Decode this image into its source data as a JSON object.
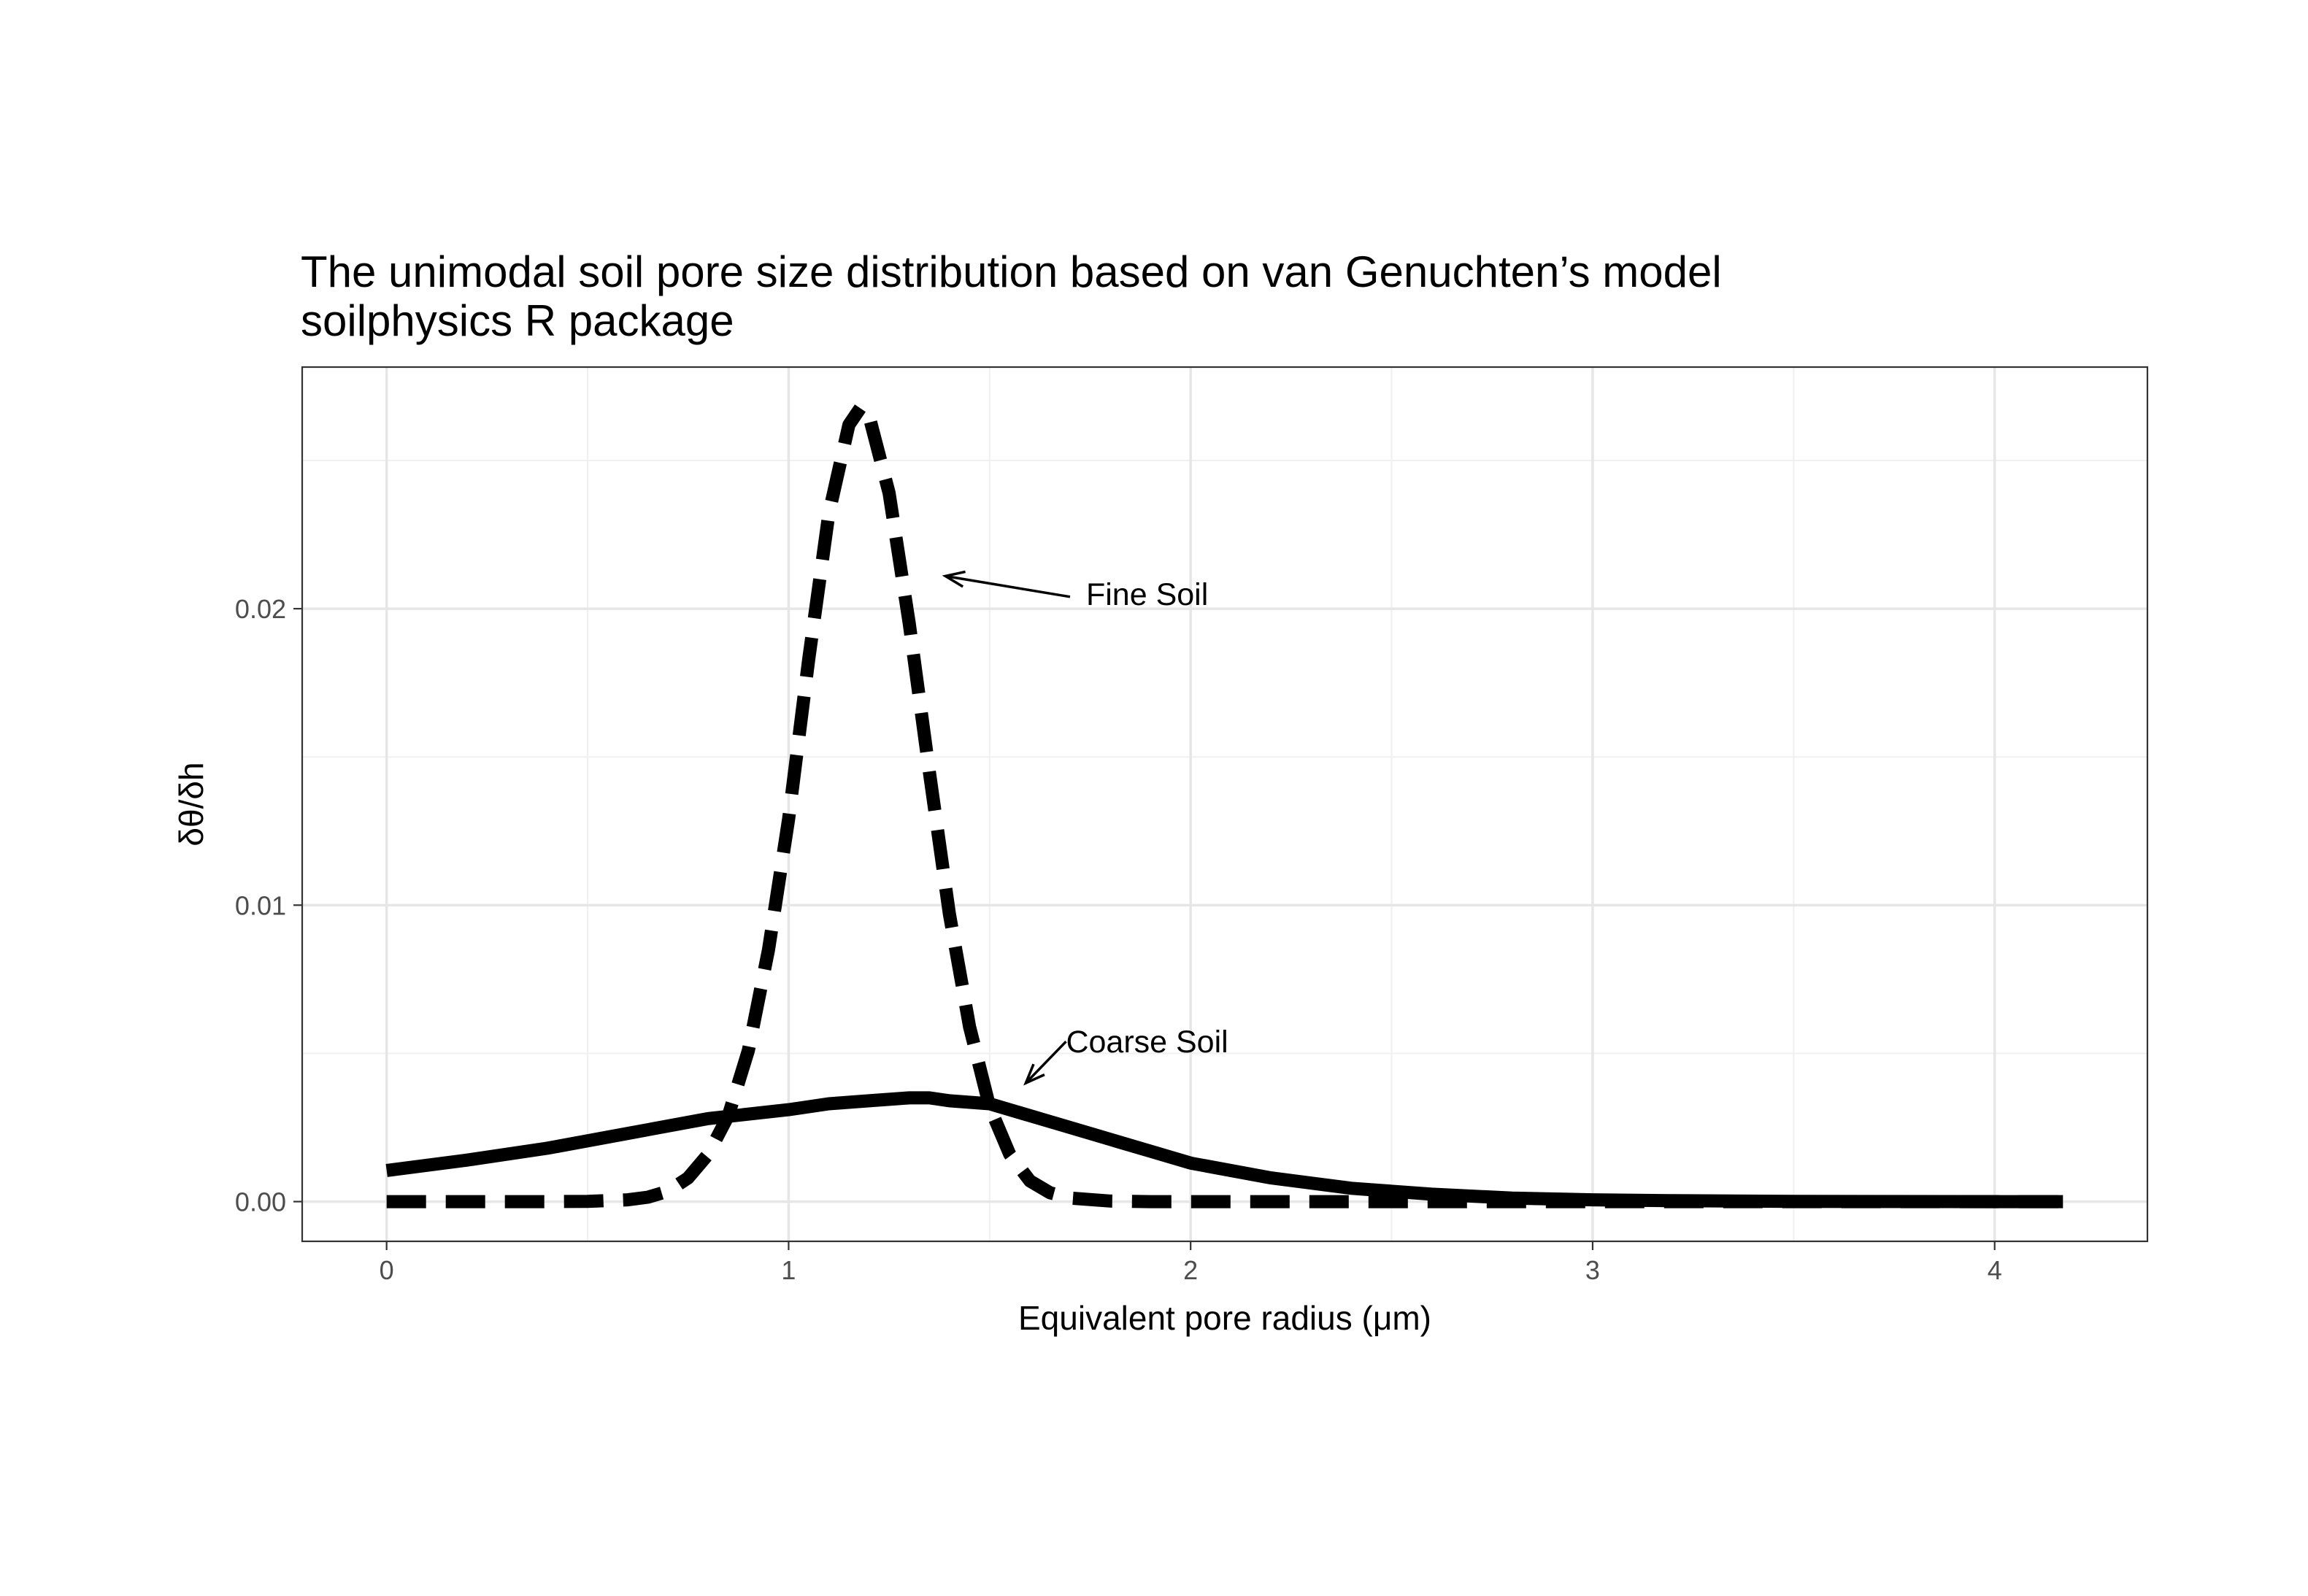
{
  "chart_data": {
    "type": "line",
    "title": "The unimodal soil pore size distribution based on van Genuchten’s model",
    "subtitle": "soilphysics R package",
    "xlabel": "Equivalent pore radius (μm)",
    "ylabel": "δθ/δh",
    "xlim": [
      -0.21,
      4.38
    ],
    "ylim": [
      -0.00134,
      0.02815
    ],
    "x_ticks": [
      0,
      1,
      2,
      3,
      4
    ],
    "x_tick_labels": [
      "0",
      "1",
      "2",
      "3",
      "4"
    ],
    "y_ticks": [
      0.0,
      0.01,
      0.02
    ],
    "y_tick_labels": [
      "0.00",
      "0.01",
      "0.02"
    ],
    "grid": true,
    "legend": "none",
    "series": [
      {
        "line_style": "dashed",
        "color": "#000000",
        "x": [
          0.0,
          0.2,
          0.4,
          0.5,
          0.6,
          0.65,
          0.7,
          0.75,
          0.8,
          0.85,
          0.9,
          0.95,
          1.0,
          1.05,
          1.1,
          1.15,
          1.18,
          1.2,
          1.25,
          1.3,
          1.35,
          1.4,
          1.45,
          1.5,
          1.55,
          1.6,
          1.65,
          1.7,
          1.8,
          1.9,
          2.0,
          2.5,
          3.0,
          3.5,
          4.0,
          4.17
        ],
        "values": [
          0.0,
          0.0,
          0.0,
          1e-05,
          6e-05,
          0.00015,
          0.00035,
          0.0008,
          0.0016,
          0.0029,
          0.0051,
          0.0085,
          0.0129,
          0.0183,
          0.0232,
          0.0262,
          0.0268,
          0.0265,
          0.0239,
          0.0195,
          0.0145,
          0.0097,
          0.0059,
          0.0032,
          0.0016,
          0.0007,
          0.0003,
          0.00012,
          2e-05,
          0.0,
          0.0,
          0.0,
          0.0,
          0.0,
          0.0,
          0.0
        ]
      },
      {
        "line_style": "solid",
        "color": "#000000",
        "x": [
          0.0,
          0.2,
          0.4,
          0.6,
          0.8,
          1.0,
          1.1,
          1.2,
          1.3,
          1.35,
          1.4,
          1.5,
          1.6,
          1.7,
          1.8,
          1.9,
          2.0,
          2.2,
          2.4,
          2.6,
          2.8,
          3.0,
          3.2,
          3.5,
          4.0,
          4.17
        ],
        "values": [
          0.00105,
          0.0014,
          0.0018,
          0.0023,
          0.0028,
          0.0031,
          0.0033,
          0.0034,
          0.0035,
          0.0035,
          0.0034,
          0.0033,
          0.0029,
          0.0025,
          0.0021,
          0.0017,
          0.0013,
          0.0008,
          0.00045,
          0.00025,
          0.00012,
          6e-05,
          3e-05,
          1e-05,
          0.0,
          0.0
        ]
      }
    ],
    "annotations": [
      {
        "text": "Fine Soil",
        "label_x": 1.74,
        "label_y": 0.0205,
        "arrow_from": [
          1.7,
          0.0204
        ],
        "arrow_to": [
          1.39,
          0.0211
        ]
      },
      {
        "text": "Coarse Soil",
        "label_x": 1.69,
        "label_y": 0.0054,
        "arrow_from": [
          1.69,
          0.0054
        ],
        "arrow_to": [
          1.59,
          0.004
        ]
      }
    ]
  }
}
